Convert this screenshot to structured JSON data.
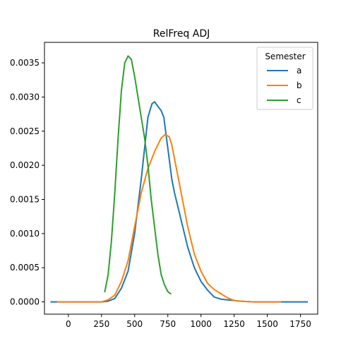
{
  "chart_data": {
    "type": "line",
    "title": "RelFreq ADJ",
    "xlabel": "",
    "ylabel": "",
    "xlim": [
      -180,
      1880
    ],
    "ylim": [
      -0.00018,
      0.0038
    ],
    "xticks": [
      0,
      250,
      500,
      750,
      1000,
      1250,
      1500,
      1750
    ],
    "xtick_labels": [
      "0",
      "250",
      "500",
      "750",
      "1000",
      "1250",
      "1500",
      "1750"
    ],
    "yticks": [
      0.0,
      0.0005,
      0.001,
      0.0015,
      0.002,
      0.0025,
      0.003,
      0.0035
    ],
    "ytick_labels": [
      "0.0000",
      "0.0005",
      "0.0010",
      "0.0015",
      "0.0020",
      "0.0025",
      "0.0030",
      "0.0035"
    ],
    "grid": false,
    "legend": {
      "title": "Semester",
      "placement": "upper right"
    },
    "series": [
      {
        "name": "a",
        "color": "#1f77b4",
        "x": [
          -130,
          0,
          100,
          200,
          250,
          300,
          350,
          400,
          450,
          500,
          550,
          600,
          630,
          650,
          680,
          700,
          720,
          740,
          760,
          780,
          800,
          850,
          900,
          950,
          1000,
          1050,
          1100,
          1150,
          1200,
          1300,
          1400,
          1500,
          1600,
          1700,
          1800
        ],
        "y": [
          0.0,
          0.0,
          0.0,
          0.0,
          0.0,
          1e-05,
          5e-05,
          0.0002,
          0.00045,
          0.001,
          0.0018,
          0.0027,
          0.0029,
          0.00293,
          0.00285,
          0.0028,
          0.0027,
          0.0024,
          0.0021,
          0.0018,
          0.0016,
          0.0012,
          0.0008,
          0.0005,
          0.0003,
          0.00017,
          7e-05,
          4e-05,
          3e-05,
          1e-05,
          0.0,
          0.0,
          0.0,
          0.0,
          0.0
        ]
      },
      {
        "name": "b",
        "color": "#ff7f0e",
        "x": [
          -80,
          0,
          100,
          200,
          250,
          300,
          350,
          400,
          450,
          500,
          550,
          600,
          650,
          700,
          730,
          760,
          780,
          800,
          850,
          900,
          950,
          1000,
          1050,
          1100,
          1150,
          1200,
          1250,
          1300,
          1400,
          1500,
          1600
        ],
        "y": [
          0.0,
          0.0,
          0.0,
          0.0,
          0.0,
          3e-05,
          0.0001,
          0.0003,
          0.0006,
          0.0011,
          0.0016,
          0.00195,
          0.0022,
          0.0024,
          0.00245,
          0.00242,
          0.0023,
          0.0021,
          0.0016,
          0.0011,
          0.0007,
          0.00045,
          0.00027,
          0.00018,
          0.00012,
          6e-05,
          2e-05,
          1e-05,
          0.0,
          0.0,
          0.0
        ]
      },
      {
        "name": "c",
        "color": "#2ca02c",
        "x": [
          275,
          300,
          325,
          350,
          375,
          400,
          425,
          450,
          475,
          500,
          525,
          550,
          575,
          600,
          625,
          650,
          675,
          700,
          725,
          750,
          770
        ],
        "y": [
          0.00015,
          0.0004,
          0.0009,
          0.0016,
          0.0024,
          0.0031,
          0.0035,
          0.0036,
          0.00355,
          0.0033,
          0.003,
          0.0027,
          0.0024,
          0.002,
          0.0015,
          0.0011,
          0.0007,
          0.0004,
          0.00025,
          0.00015,
          0.00012
        ]
      }
    ]
  }
}
